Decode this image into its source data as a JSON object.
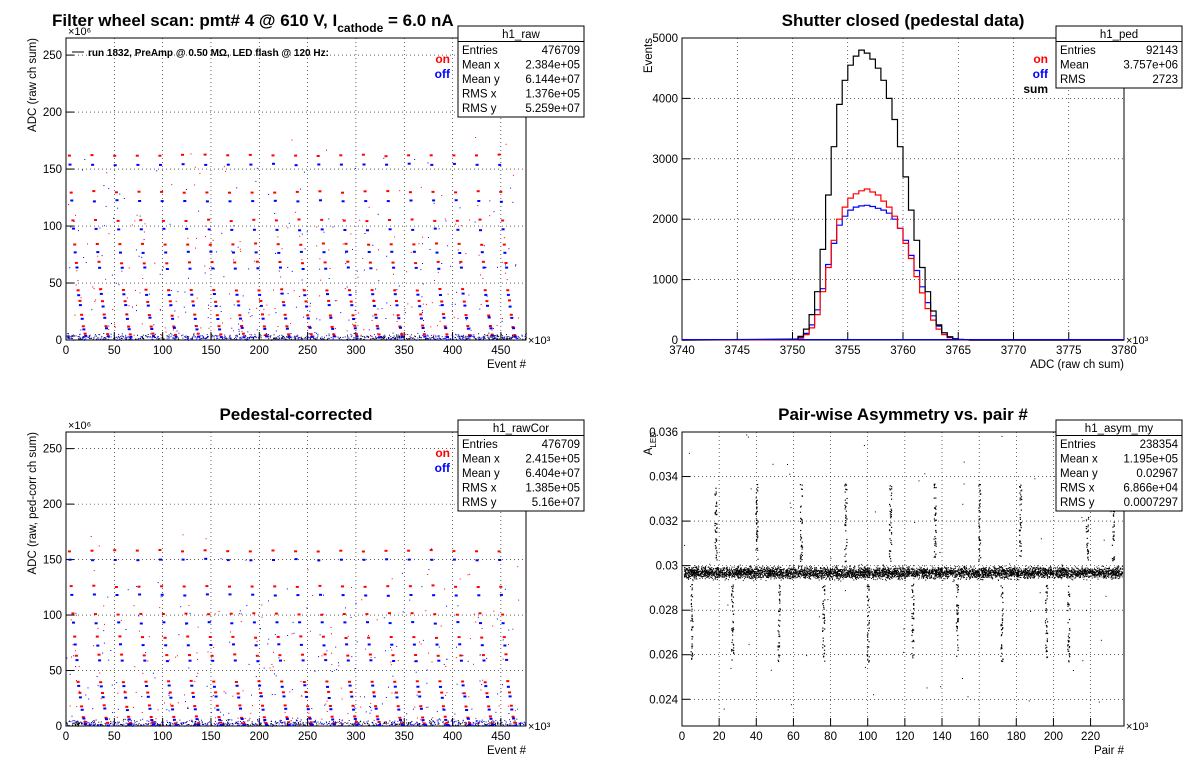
{
  "chart_data": [
    {
      "id": "raw",
      "type": "scatter",
      "title": "Filter wheel scan: pmt#   4 @   610 V, I",
      "title_sub": "cathode",
      "title_tail": "   = 6.0 nA",
      "subtitle": "run 1832, PreAmp @ 0.50 MΩ, LED flash @  120 Hz:",
      "xlabel": "Event #",
      "ylabel": "ADC (raw ch sum)",
      "x_exp": "×10³",
      "y_exp": "×10⁶",
      "xlim": [
        0,
        476
      ],
      "ylim": [
        0,
        265
      ],
      "xticks": [
        0,
        50,
        100,
        150,
        200,
        250,
        300,
        350,
        400,
        450
      ],
      "yticks": [
        0,
        50,
        100,
        150,
        200,
        250
      ],
      "legend": [
        {
          "name": "on",
          "color": "#ff0000"
        },
        {
          "name": "off",
          "color": "#0000ff"
        }
      ],
      "levels_on": [
        162,
        130,
        105,
        84,
        68,
        44,
        34,
        22,
        12,
        5
      ],
      "levels_off": [
        154,
        122,
        97,
        77,
        63,
        40,
        30,
        19,
        10,
        3
      ],
      "step_period": 23.4,
      "stats": {
        "name": "h1_raw",
        "rows": [
          [
            "Entries",
            "476709"
          ],
          [
            "Mean x",
            "2.384e+05"
          ],
          [
            "Mean y",
            "6.144e+07"
          ],
          [
            "RMS x",
            "1.376e+05"
          ],
          [
            "RMS y",
            "5.259e+07"
          ]
        ]
      }
    },
    {
      "id": "ped",
      "type": "line",
      "title": "Shutter closed (pedestal data)",
      "xlabel": "ADC (raw ch sum)",
      "ylabel": "Events",
      "x_exp": "×10³",
      "xlim": [
        3740,
        3780
      ],
      "ylim": [
        0,
        5000
      ],
      "xticks": [
        3740,
        3745,
        3750,
        3755,
        3760,
        3765,
        3770,
        3775,
        3780
      ],
      "yticks": [
        0,
        1000,
        2000,
        3000,
        4000,
        5000
      ],
      "series": [
        {
          "name": "sum",
          "color": "#000000",
          "x": [
            3750,
            3750.5,
            3751,
            3751.5,
            3752,
            3752.5,
            3753,
            3753.5,
            3754,
            3754.5,
            3755,
            3755.5,
            3756,
            3756.5,
            3757,
            3757.5,
            3758,
            3758.5,
            3759,
            3759.5,
            3760,
            3760.5,
            3761,
            3761.5,
            3762,
            3762.5,
            3763,
            3763.5,
            3764,
            3764.5,
            3765,
            3765.5,
            3766
          ],
          "values": [
            15,
            60,
            180,
            420,
            800,
            1500,
            2400,
            3200,
            3900,
            4300,
            4550,
            4700,
            4800,
            4750,
            4650,
            4500,
            4300,
            4000,
            3650,
            3200,
            2700,
            2150,
            1650,
            1200,
            800,
            480,
            250,
            120,
            50,
            20,
            8,
            3,
            0
          ]
        },
        {
          "name": "on",
          "color": "#ff0000",
          "x": [
            3750,
            3750.5,
            3751,
            3751.5,
            3752,
            3752.5,
            3753,
            3753.5,
            3754,
            3754.5,
            3755,
            3755.5,
            3756,
            3756.5,
            3757,
            3757.5,
            3758,
            3758.5,
            3759,
            3759.5,
            3760,
            3760.5,
            3761,
            3761.5,
            3762,
            3762.5,
            3763,
            3763.5,
            3764,
            3764.5,
            3765,
            3765.5,
            3766
          ],
          "values": [
            5,
            30,
            90,
            200,
            420,
            800,
            1200,
            1650,
            2000,
            2200,
            2350,
            2420,
            2470,
            2500,
            2450,
            2400,
            2300,
            2200,
            2050,
            1850,
            1600,
            1350,
            1050,
            780,
            520,
            330,
            180,
            90,
            40,
            15,
            5,
            2,
            0
          ]
        },
        {
          "name": "off",
          "color": "#0000ff",
          "x": [
            3750,
            3750.5,
            3751,
            3751.5,
            3752,
            3752.5,
            3753,
            3753.5,
            3754,
            3754.5,
            3755,
            3755.5,
            3756,
            3756.5,
            3757,
            3757.5,
            3758,
            3758.5,
            3759,
            3759.5,
            3760,
            3760.5,
            3761,
            3761.5,
            3762,
            3762.5,
            3763,
            3763.5,
            3764,
            3764.5,
            3765,
            3765.5,
            3766
          ],
          "values": [
            8,
            40,
            110,
            250,
            500,
            850,
            1250,
            1600,
            1900,
            2050,
            2150,
            2200,
            2220,
            2230,
            2210,
            2180,
            2150,
            2100,
            2000,
            1850,
            1650,
            1400,
            1150,
            880,
            620,
            400,
            230,
            120,
            55,
            20,
            8,
            3,
            0
          ]
        }
      ],
      "stats": {
        "name": "h1_ped",
        "rows": [
          [
            "Entries",
            "92143"
          ],
          [
            "Mean",
            "3.757e+06"
          ],
          [
            "RMS",
            "2723"
          ]
        ]
      }
    },
    {
      "id": "cor",
      "type": "scatter",
      "title": "Pedestal-corrected",
      "xlabel": "Event #",
      "ylabel": "ADC (raw, ped-corr ch sum)",
      "x_exp": "×10³",
      "y_exp": "×10⁶",
      "xlim": [
        0,
        476
      ],
      "ylim": [
        0,
        265
      ],
      "xticks": [
        0,
        50,
        100,
        150,
        200,
        250,
        300,
        350,
        400,
        450
      ],
      "yticks": [
        0,
        50,
        100,
        150,
        200,
        250
      ],
      "legend": [
        {
          "name": "on",
          "color": "#ff0000"
        },
        {
          "name": "off",
          "color": "#0000ff"
        }
      ],
      "levels_on": [
        158,
        126,
        101,
        80,
        64,
        40,
        30,
        18,
        8,
        3
      ],
      "levels_off": [
        150,
        118,
        93,
        73,
        59,
        36,
        26,
        15,
        6,
        1
      ],
      "step_period": 23.4,
      "stats": {
        "name": "h1_rawCor",
        "rows": [
          [
            "Entries",
            "476709"
          ],
          [
            "Mean x",
            "2.415e+05"
          ],
          [
            "Mean y",
            "6.404e+07"
          ],
          [
            "RMS x",
            "1.385e+05"
          ],
          [
            "RMS y",
            "5.16e+07"
          ]
        ]
      }
    },
    {
      "id": "asym",
      "type": "scatter",
      "title": "Pair-wise Asymmetry vs. pair #",
      "xlabel": "Pair #",
      "ylabel": "A",
      "ylabel_sub": "LED",
      "x_exp": "×10³",
      "xlim": [
        0,
        238
      ],
      "ylim": [
        0.0228,
        0.036
      ],
      "xticks": [
        0,
        20,
        40,
        60,
        80,
        100,
        120,
        140,
        160,
        180,
        200,
        220
      ],
      "yticks": [
        0.024,
        0.026,
        0.028,
        0.03,
        0.032,
        0.034,
        0.036
      ],
      "ytick_labels": [
        "0.024",
        "0.026",
        "0.028",
        "0.03",
        "0.032",
        "0.034",
        "0.036"
      ],
      "mean": 0.0297,
      "spike_up": [
        18,
        40,
        64,
        88,
        112,
        136,
        160,
        182,
        218,
        232
      ],
      "spike_down": [
        5,
        27,
        52,
        76,
        100,
        124,
        148,
        172,
        196,
        208
      ],
      "stats": {
        "name": "h1_asym_my",
        "rows": [
          [
            "Entries",
            "238354"
          ],
          [
            "Mean x",
            "1.195e+05"
          ],
          [
            "Mean y",
            "0.02967"
          ],
          [
            "RMS x",
            "6.866e+04"
          ],
          [
            "RMS y",
            "0.0007297"
          ]
        ]
      }
    }
  ]
}
